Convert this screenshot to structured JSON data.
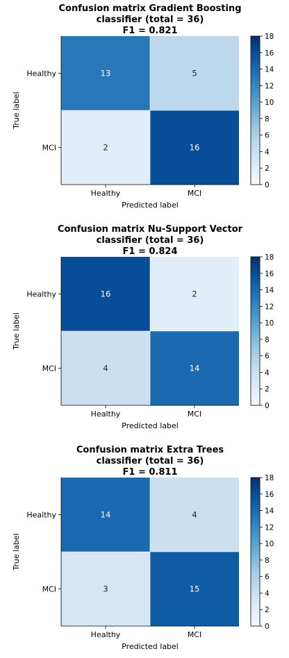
{
  "figure": {
    "xlabel": "Predicted label",
    "ylabel": "True label",
    "classes": [
      "Healthy",
      "MCI"
    ],
    "colorbar_ticks": [
      0,
      2,
      4,
      6,
      8,
      10,
      12,
      14,
      16,
      18
    ],
    "colormap": [
      "#f7fbff",
      "#deebf7",
      "#c6dbef",
      "#9ecae1",
      "#6baed6",
      "#4292c6",
      "#2171b5",
      "#08519c",
      "#08306b"
    ]
  },
  "chart_data": [
    {
      "type": "heatmap",
      "title_lines": [
        "Confusion matrix Gradient Boosting",
        "classifier (total = 36)",
        "F1 = 0.821"
      ],
      "x_categories": [
        "Healthy",
        "MCI"
      ],
      "y_categories": [
        "Healthy",
        "MCI"
      ],
      "values": [
        [
          13,
          5
        ],
        [
          2,
          16
        ]
      ],
      "xlabel": "Predicted label",
      "ylabel": "True label",
      "colorbar_range": [
        0,
        18
      ]
    },
    {
      "type": "heatmap",
      "title_lines": [
        "Confusion matrix Nu-Support Vector",
        "classifier (total = 36)",
        "F1 = 0.824"
      ],
      "x_categories": [
        "Healthy",
        "MCI"
      ],
      "y_categories": [
        "Healthy",
        "MCI"
      ],
      "values": [
        [
          16,
          2
        ],
        [
          4,
          14
        ]
      ],
      "xlabel": "Predicted label",
      "ylabel": "True label",
      "colorbar_range": [
        0,
        18
      ]
    },
    {
      "type": "heatmap",
      "title_lines": [
        "Confusion matrix Extra Trees",
        "classifier (total = 36)",
        "F1 = 0.811"
      ],
      "x_categories": [
        "Healthy",
        "MCI"
      ],
      "y_categories": [
        "Healthy",
        "MCI"
      ],
      "values": [
        [
          14,
          4
        ],
        [
          3,
          15
        ]
      ],
      "xlabel": "Predicted label",
      "ylabel": "True label",
      "colorbar_range": [
        0,
        18
      ]
    }
  ]
}
